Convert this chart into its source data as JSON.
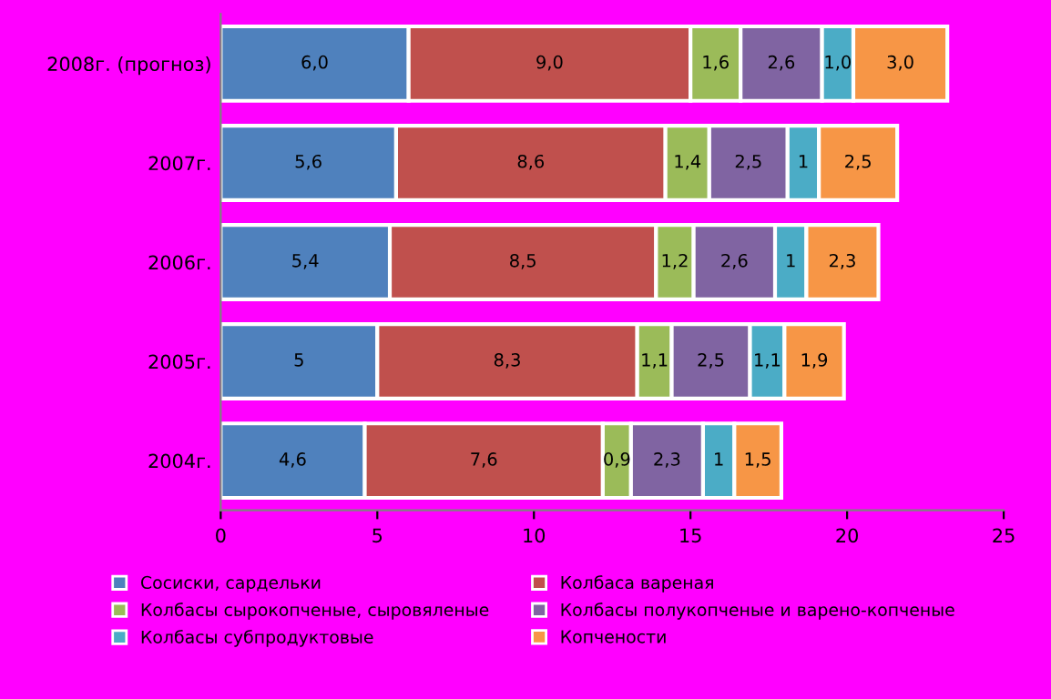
{
  "chart_data": {
    "type": "bar",
    "orientation": "horizontal",
    "stacked": true,
    "categories": [
      "2008г. (прогноз)",
      "2007г.",
      "2006г.",
      "2005г.",
      "2004г."
    ],
    "series": [
      {
        "name": "Сосиски, сардельки",
        "color": "#4f81bd",
        "values": [
          6.0,
          5.6,
          5.4,
          5,
          4.6
        ],
        "value_labels": [
          "6,0",
          "5,6",
          "5,4",
          "5",
          "4,6"
        ]
      },
      {
        "name": "Колбаса вареная",
        "color": "#c0504d",
        "values": [
          9.0,
          8.6,
          8.5,
          8.3,
          7.6
        ],
        "value_labels": [
          "9,0",
          "8,6",
          "8,5",
          "8,3",
          "7,6"
        ]
      },
      {
        "name": "Колбасы сырокопченые, сыровяленые",
        "color": "#9bbb59",
        "values": [
          1.6,
          1.4,
          1.2,
          1.1,
          0.9
        ],
        "value_labels": [
          "1,6",
          "1,4",
          "1,2",
          "1,1",
          "0,9"
        ]
      },
      {
        "name": "Колбасы полукопченые и варено-копченые",
        "color": "#8064a2",
        "values": [
          2.6,
          2.5,
          2.6,
          2.5,
          2.3
        ],
        "value_labels": [
          "2,6",
          "2,5",
          "2,6",
          "2,5",
          "2,3"
        ]
      },
      {
        "name": "Колбасы субпродуктовые",
        "color": "#4bacc6",
        "values": [
          1.0,
          1,
          1,
          1.1,
          1
        ],
        "value_labels": [
          "1,0",
          "1",
          "1",
          "1,1",
          "1"
        ]
      },
      {
        "name": "Копчености",
        "color": "#f79646",
        "values": [
          3.0,
          2.5,
          2.3,
          1.9,
          1.5
        ],
        "value_labels": [
          "3,0",
          "2,5",
          "2,3",
          "1,9",
          "1,5"
        ]
      }
    ],
    "xlim": [
      0,
      25
    ],
    "xticks": [
      0,
      5,
      10,
      15,
      20,
      25
    ],
    "grid": false,
    "legend": "bottom"
  }
}
